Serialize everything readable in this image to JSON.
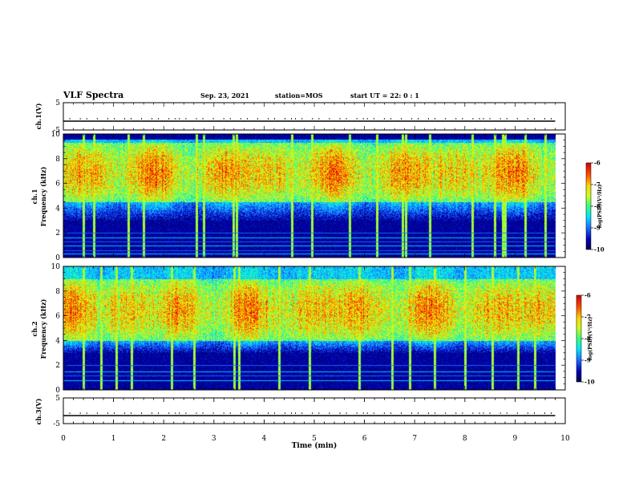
{
  "header": {
    "title": "VLF Spectra",
    "date": "Sep. 23, 2021",
    "station": "station=MOS",
    "start": "start  UT =   22: 0  : 1"
  },
  "colors": {
    "scale": [
      "#00004a",
      "#0000b4",
      "#1c6cff",
      "#00e6ff",
      "#38ff7a",
      "#c8ff1e",
      "#ffd200",
      "#ff5000",
      "#d20000"
    ],
    "background": "#ffffff",
    "line": "#000000"
  },
  "chart_data": [
    {
      "type": "line",
      "id": "ch1-voltage",
      "ylabel": "ch.1(V)",
      "ylim": [
        -5,
        5
      ],
      "yticks": [
        "5",
        "-5"
      ],
      "x": [
        0,
        9.8
      ],
      "y": [
        0,
        0
      ]
    },
    {
      "type": "heatmap",
      "id": "ch1-spectrogram",
      "ylabel_line1": "ch.1",
      "ylabel_line2": "Frequency (kHz)",
      "ylim": [
        0,
        10
      ],
      "yticks": [
        "0",
        "2",
        "4",
        "6",
        "8",
        "10"
      ],
      "xlim": [
        0,
        10
      ],
      "data_x_max": 9.8,
      "colorbar": {
        "label": "log(PSD)(V²/Hz)",
        "range": [
          -10,
          -6
        ],
        "ticks": [
          "-6",
          "-7",
          "-8",
          "-9",
          "-10"
        ]
      },
      "strong_band_khz": [
        4.5,
        9.3
      ],
      "bright_columns_min": [
        0.4,
        0.6,
        1.3,
        1.6,
        2.65,
        2.8,
        3.38,
        3.45,
        4.55,
        4.95,
        5.7,
        6.25,
        6.75,
        6.82,
        7.3,
        8.15,
        8.6,
        8.75,
        8.8,
        9.2,
        9.6
      ],
      "tone_lines_khz": [
        0.3,
        0.6,
        1.0,
        1.3,
        1.6,
        2.0
      ]
    },
    {
      "type": "heatmap",
      "id": "ch2-spectrogram",
      "ylabel_line1": "ch.2",
      "ylabel_line2": "Frequency (kHz)",
      "ylim": [
        0,
        10
      ],
      "yticks": [
        "0",
        "2",
        "4",
        "6",
        "8",
        "10"
      ],
      "xlim": [
        0,
        10
      ],
      "data_x_max": 9.8,
      "colorbar": {
        "label": "log(PSD)(V²/Hz)",
        "range": [
          -10,
          -6
        ],
        "ticks": [
          "-6",
          "-7",
          "-8",
          "-9",
          "-10"
        ]
      },
      "strong_band_khz": [
        4.0,
        9.0
      ],
      "bright_columns_min": [
        0.4,
        0.75,
        1.05,
        1.35,
        2.15,
        2.6,
        3.4,
        3.5,
        4.3,
        4.9,
        5.9,
        6.55,
        6.9,
        7.4,
        8.0,
        8.55,
        9.05,
        9.4
      ],
      "tone_lines_khz": [
        0.8,
        1.2,
        1.5,
        2.0
      ]
    },
    {
      "type": "line",
      "id": "ch3-voltage",
      "ylabel": "ch.3(V)",
      "ylim": [
        -5,
        5
      ],
      "yticks": [
        "5",
        "-5"
      ],
      "x": [
        0,
        9.8
      ],
      "y": [
        0,
        0
      ]
    }
  ],
  "xaxis": {
    "label": "Time  (min)",
    "range": [
      0,
      10
    ],
    "ticks": [
      "0",
      "1",
      "2",
      "3",
      "4",
      "5",
      "6",
      "7",
      "8",
      "9",
      "10"
    ]
  }
}
